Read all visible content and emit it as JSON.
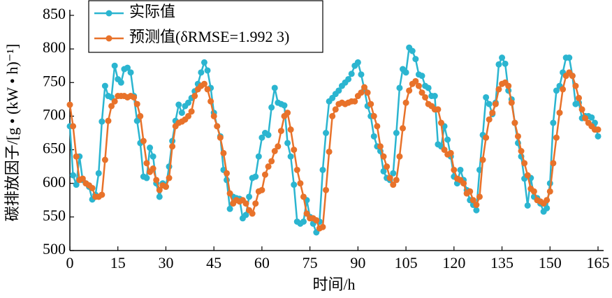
{
  "chart_data": {
    "type": "line",
    "xlabel": "时间/h",
    "ylabel": "碳排放因子/[g • (kW • h)⁻¹]",
    "x": [
      0,
      1,
      2,
      3,
      4,
      5,
      6,
      7,
      8,
      9,
      10,
      11,
      12,
      13,
      14,
      15,
      16,
      17,
      18,
      19,
      20,
      21,
      22,
      23,
      24,
      25,
      26,
      27,
      28,
      29,
      30,
      31,
      32,
      33,
      34,
      35,
      36,
      37,
      38,
      39,
      40,
      41,
      42,
      43,
      44,
      45,
      46,
      47,
      48,
      49,
      50,
      51,
      52,
      53,
      54,
      55,
      56,
      57,
      58,
      59,
      60,
      61,
      62,
      63,
      64,
      65,
      66,
      67,
      68,
      69,
      70,
      71,
      72,
      73,
      74,
      75,
      76,
      77,
      78,
      79,
      80,
      81,
      82,
      83,
      84,
      85,
      86,
      87,
      88,
      89,
      90,
      91,
      92,
      93,
      94,
      95,
      96,
      97,
      98,
      99,
      100,
      101,
      102,
      103,
      104,
      105,
      106,
      107,
      108,
      109,
      110,
      111,
      112,
      113,
      114,
      115,
      116,
      117,
      118,
      119,
      120,
      121,
      122,
      123,
      124,
      125,
      126,
      127,
      128,
      129,
      130,
      131,
      132,
      133,
      134,
      135,
      136,
      137,
      138,
      139,
      140,
      141,
      142,
      143,
      144,
      145,
      146,
      147,
      148,
      149,
      150,
      151,
      152,
      153,
      154,
      155,
      156,
      157,
      158,
      159,
      160,
      161,
      162,
      163,
      164,
      165
    ],
    "series": [
      {
        "name": "实际值",
        "color": "#2bb5d0",
        "values": [
          685,
          612,
          598,
          640,
          605,
          600,
          595,
          576,
          583,
          615,
          692,
          745,
          730,
          728,
          775,
          755,
          750,
          770,
          772,
          765,
          730,
          693,
          660,
          610,
          608,
          653,
          640,
          600,
          580,
          600,
          595,
          625,
          663,
          693,
          717,
          705,
          715,
          720,
          727,
          737,
          748,
          765,
          780,
          768,
          742,
          705,
          685,
          670,
          620,
          605,
          562,
          580,
          578,
          577,
          548,
          553,
          580,
          608,
          610,
          640,
          668,
          675,
          672,
          713,
          742,
          720,
          718,
          716,
          660,
          640,
          598,
          543,
          540,
          543,
          575,
          550,
          540,
          527,
          543,
          620,
          675,
          722,
          727,
          733,
          738,
          745,
          750,
          755,
          763,
          775,
          780,
          762,
          740,
          715,
          700,
          670,
          655,
          648,
          618,
          608,
          605,
          615,
          675,
          742,
          770,
          765,
          802,
          797,
          785,
          762,
          760,
          745,
          742,
          730,
          730,
          658,
          655,
          685,
          665,
          640,
          610,
          600,
          620,
          605,
          590,
          575,
          568,
          560,
          620,
          672,
          728,
          718,
          703,
          720,
          777,
          787,
          778,
          738,
          725,
          690,
          660,
          640,
          607,
          567,
          608,
          580,
          578,
          570,
          558,
          563,
          600,
          690,
          738,
          745,
          765,
          787,
          787,
          760,
          718,
          720,
          697,
          700,
          700,
          698,
          690,
          670
        ]
      },
      {
        "name": "预测值(δRMSE=1.992 3)",
        "color": "#e8722a",
        "values": [
          717,
          685,
          640,
          605,
          607,
          600,
          597,
          593,
          580,
          580,
          583,
          635,
          693,
          715,
          722,
          730,
          730,
          730,
          728,
          730,
          728,
          718,
          700,
          663,
          630,
          617,
          622,
          605,
          590,
          597,
          595,
          608,
          655,
          685,
          690,
          692,
          695,
          700,
          707,
          730,
          740,
          745,
          748,
          740,
          722,
          700,
          685,
          668,
          645,
          615,
          585,
          570,
          575,
          573,
          575,
          570,
          560,
          555,
          570,
          588,
          590,
          613,
          625,
          633,
          648,
          655,
          678,
          700,
          705,
          680,
          650,
          620,
          600,
          580,
          555,
          548,
          548,
          545,
          533,
          535,
          590,
          647,
          700,
          710,
          718,
          720,
          718,
          720,
          722,
          722,
          730,
          735,
          743,
          735,
          718,
          700,
          685,
          655,
          640,
          625,
          608,
          598,
          605,
          640,
          682,
          720,
          738,
          748,
          752,
          745,
          735,
          728,
          718,
          715,
          710,
          710,
          690,
          650,
          643,
          645,
          620,
          607,
          605,
          600,
          585,
          588,
          575,
          568,
          580,
          635,
          668,
          695,
          705,
          718,
          740,
          748,
          750,
          745,
          720,
          690,
          670,
          648,
          630,
          612,
          592,
          588,
          575,
          573,
          570,
          575,
          588,
          630,
          668,
          705,
          740,
          760,
          765,
          760,
          745,
          727,
          710,
          697,
          690,
          685,
          680,
          680
        ]
      }
    ],
    "xlim": [
      0,
      165
    ],
    "xticks": [
      0,
      15,
      30,
      45,
      60,
      75,
      90,
      105,
      120,
      135,
      150,
      165
    ],
    "ylim": [
      500,
      850
    ],
    "yticks": [
      500,
      550,
      600,
      650,
      700,
      750,
      800,
      850
    ],
    "grid": false,
    "legend": "upper left"
  }
}
